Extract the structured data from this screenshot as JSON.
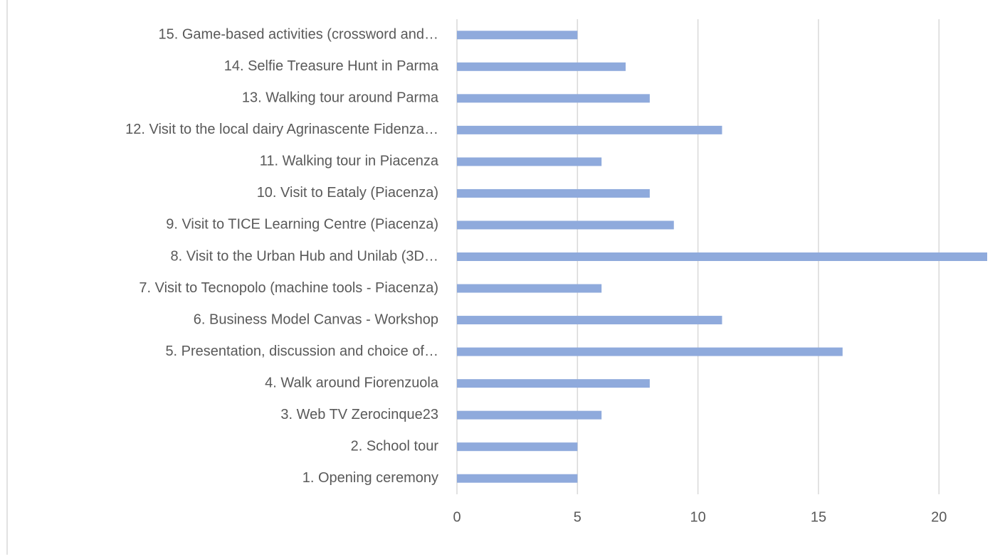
{
  "chart_data": {
    "type": "bar",
    "orientation": "horizontal",
    "categories": [
      "1.  Opening ceremony",
      "2.  School tour",
      "3.  Web TV Zerocinque23",
      "4.  Walk around Fiorenzuola",
      "5.  Presentation, discussion and choice of…",
      "6.  Business Model Canvas - Workshop",
      "7.  Visit to Tecnopolo (machine tools - Piacenza)",
      "8.  Visit to the Urban Hub and Unilab (3D…",
      "9.  Visit to TICE Learning Centre (Piacenza)",
      "10.  Visit to Eataly (Piacenza)",
      "11.  Walking tour in Piacenza",
      "12.  Visit to the local dairy Agrinascente Fidenza…",
      "13.  Walking tour around Parma",
      "14.  Selfie Treasure Hunt in Parma",
      "15.  Game-based activities (crossword and…"
    ],
    "values": [
      5,
      5,
      6,
      8,
      16,
      11,
      6,
      22,
      9,
      8,
      6,
      11,
      8,
      7,
      5
    ],
    "color": "#8faadc",
    "xlim": [
      0,
      22
    ],
    "xticks": [
      0,
      5,
      10,
      15,
      20
    ],
    "grid": true
  }
}
